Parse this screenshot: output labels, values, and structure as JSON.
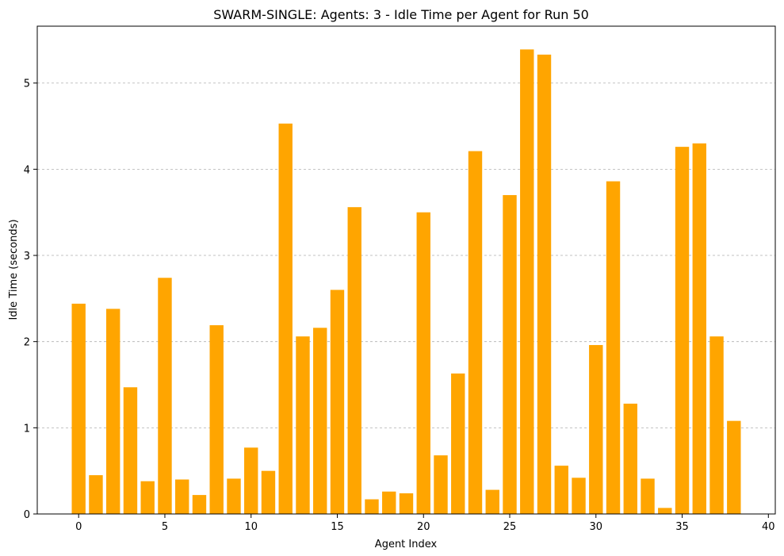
{
  "chart_data": {
    "type": "bar",
    "title": "SWARM-SINGLE: Agents: 3 - Idle Time per Agent for Run 50",
    "xlabel": "Agent Index",
    "ylabel": "Idle Time (seconds)",
    "x": [
      0,
      1,
      2,
      3,
      4,
      5,
      6,
      7,
      8,
      9,
      10,
      11,
      12,
      13,
      14,
      15,
      16,
      17,
      18,
      19,
      20,
      21,
      22,
      23,
      24,
      25,
      26,
      27,
      28,
      29,
      30,
      31,
      32,
      33,
      34,
      35,
      36,
      37,
      38
    ],
    "values": [
      2.44,
      0.45,
      2.38,
      1.47,
      0.38,
      2.74,
      0.4,
      0.22,
      2.19,
      0.41,
      0.77,
      0.5,
      4.53,
      2.06,
      2.16,
      2.6,
      3.56,
      0.17,
      0.26,
      0.24,
      3.5,
      0.68,
      1.63,
      4.21,
      0.28,
      3.7,
      5.39,
      5.33,
      0.56,
      0.42,
      1.96,
      3.86,
      1.28,
      0.41,
      0.07,
      4.26,
      4.3,
      2.06,
      1.08
    ],
    "xlim": [
      -2.4,
      40.4
    ],
    "ylim": [
      0,
      5.66
    ],
    "xticks": [
      0,
      5,
      10,
      15,
      20,
      25,
      30,
      35,
      40
    ],
    "yticks": [
      0,
      1,
      2,
      3,
      4,
      5
    ],
    "xtick_labels": [
      "0",
      "5",
      "10",
      "15",
      "20",
      "25",
      "30",
      "35",
      "40"
    ],
    "ytick_labels": [
      "0",
      "1",
      "2",
      "3",
      "4",
      "5"
    ],
    "bar_width": 0.8,
    "grid": {
      "axis": "y",
      "style": "dashed"
    },
    "colors": {
      "bar": "#ffa500",
      "grid": "#b0b0b0"
    }
  }
}
